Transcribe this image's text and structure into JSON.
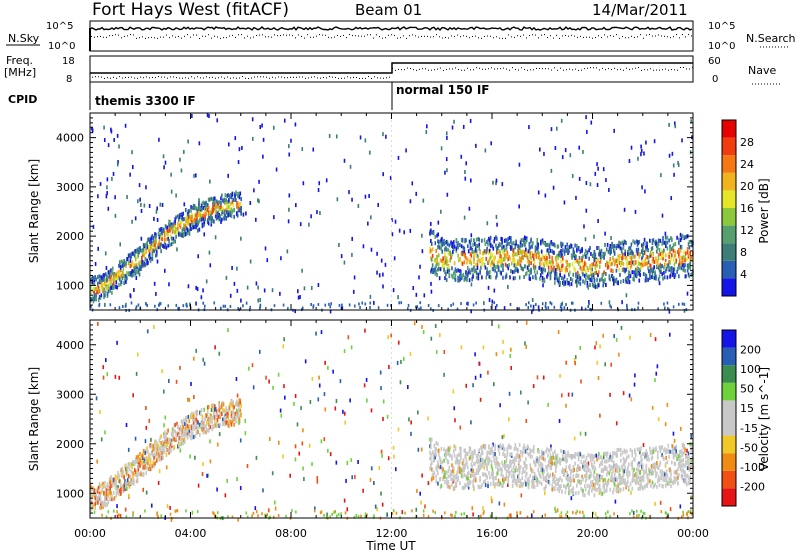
{
  "header": {
    "station": "Fort Hays West (fitACF)",
    "beam": "Beam 01",
    "date": "14/Mar/2011"
  },
  "top_panels": {
    "nsky_label": "N.Sky",
    "nsky_ticks": [
      "10^5",
      "10^0"
    ],
    "nsearch_label": "N.Search",
    "nsearch_ticks": [
      "10^5",
      "10^0"
    ],
    "freq_label": "Freq.",
    "freq_unit": "[MHz]",
    "freq_ticks": [
      "18",
      "8"
    ],
    "nave_label": "Nave",
    "nave_ticks": [
      "60",
      "0"
    ],
    "cpid_label": "CPID",
    "cpid_modes": [
      "themis 3300 IF",
      "normal 150 IF"
    ]
  },
  "chart_data": [
    {
      "type": "heatmap",
      "name": "power-panel",
      "ylabel": "Slant Range [km]",
      "xlabel": "",
      "y_ticks": [
        "1000",
        "2000",
        "3000",
        "4000"
      ],
      "ylim": [
        500,
        4500
      ],
      "xlim": [
        0,
        24
      ],
      "colorbar_label": "Power [dB]",
      "colorbar_ticks": [
        "4",
        "8",
        "12",
        "16",
        "20",
        "24",
        "28"
      ],
      "colorbar_colors": [
        "#1414e6",
        "#285fb4",
        "#3c7d78",
        "#55a06e",
        "#8cc83c",
        "#e6e628",
        "#f0b41e",
        "#f57814",
        "#f03c0f",
        "#e60000"
      ],
      "bands": [
        {
          "t": [
            0.0,
            0.5,
            1.0,
            2.0,
            3.0,
            4.0,
            5.0,
            6.0
          ],
          "r": [
            950,
            1000,
            1200,
            1600,
            2050,
            2400,
            2600,
            2700
          ]
        },
        {
          "t": [
            13.5,
            14.0,
            15.0,
            16.0,
            17.0,
            18.0,
            19.0,
            20.0,
            21.0,
            22.0,
            23.0,
            24.0
          ],
          "r": [
            1600,
            1400,
            1400,
            1450,
            1450,
            1400,
            1300,
            1250,
            1350,
            1400,
            1450,
            1500
          ]
        }
      ]
    },
    {
      "type": "heatmap",
      "name": "velocity-panel",
      "ylabel": "Slant Range [km]",
      "xlabel": "Time UT",
      "x_ticks": [
        "00:00",
        "04:00",
        "08:00",
        "12:00",
        "16:00",
        "20:00",
        "00:00"
      ],
      "y_ticks": [
        "1000",
        "2000",
        "3000",
        "4000"
      ],
      "ylim": [
        500,
        4500
      ],
      "xlim": [
        0,
        24
      ],
      "colorbar_label": "Velocity [m s^-1]",
      "colorbar_ticks": [
        "200",
        "100",
        "50",
        "15",
        "-15",
        "-50",
        "-100",
        "-200"
      ],
      "colorbar_colors": [
        "#1414e6",
        "#285fb4",
        "#3c8c50",
        "#6ed23c",
        "#c8c8c8",
        "#c8c8c8",
        "#f0c828",
        "#f08c14",
        "#f05014",
        "#e61414"
      ]
    }
  ]
}
